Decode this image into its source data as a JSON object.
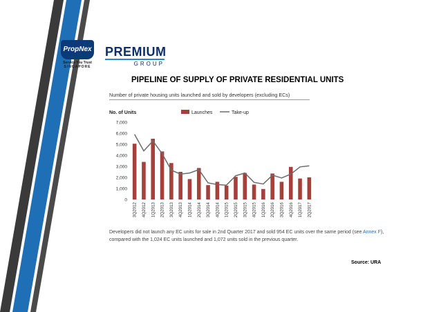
{
  "logos": {
    "propnex_name": "PropNex",
    "propnex_tagline": "Service You Trust",
    "propnex_country": "SINGAPORE",
    "premium_word": "PREMIUM",
    "premium_sub": "GROUP"
  },
  "page_title": "PIPELINE OF SUPPLY OF PRIVATE RESIDENTIAL UNITS",
  "colors": {
    "stripe_blue": "#1e6fb5",
    "stripe_dark": "#3a3a3a",
    "launches_bar": "#a6403c",
    "takeup_line": "#6b6b6b"
  },
  "chart_data": {
    "type": "bar",
    "title": "Number of private housing units launched and sold by developers (excluding ECs)",
    "ylabel": "No. of Units",
    "ylim": [
      0,
      7000
    ],
    "yticks": [
      "7,000",
      "6,000",
      "5,000",
      "4,000",
      "3,000",
      "2,000",
      "1,000",
      "0"
    ],
    "grid": false,
    "legend_position": "top",
    "categories": [
      "3Q2012",
      "4Q2012",
      "1Q2013",
      "2Q2013",
      "3Q2013",
      "4Q2013",
      "1Q2014",
      "2Q2014",
      "3Q2014",
      "4Q2014",
      "1Q2015",
      "2Q2015",
      "3Q2015",
      "4Q2015",
      "1Q2016",
      "2Q2016",
      "3Q2016",
      "4Q2016",
      "1Q2017",
      "2Q2017"
    ],
    "series": [
      {
        "name": "Launches",
        "kind": "bar",
        "values": [
          5050,
          3400,
          5500,
          4350,
          3300,
          2500,
          1850,
          2850,
          1300,
          1600,
          1250,
          2050,
          2400,
          1350,
          950,
          2350,
          1600,
          2950,
          1900,
          2000
        ]
      },
      {
        "name": "Take-up",
        "kind": "line",
        "values": [
          5900,
          4400,
          5300,
          4150,
          2650,
          2300,
          2400,
          2700,
          1500,
          1350,
          1300,
          2150,
          2400,
          1550,
          1400,
          2200,
          1950,
          2300,
          2950,
          3050
        ]
      }
    ]
  },
  "note": {
    "text_before": "Developers did not launch any EC units for sale in 2nd Quarter 2017 and sold 954 EC units over the same period (see ",
    "link": "Annex F",
    "text_after": "), compared with the 1,024 EC units launched and 1,072 units sold in the previous quarter."
  },
  "source": "Source: URA"
}
